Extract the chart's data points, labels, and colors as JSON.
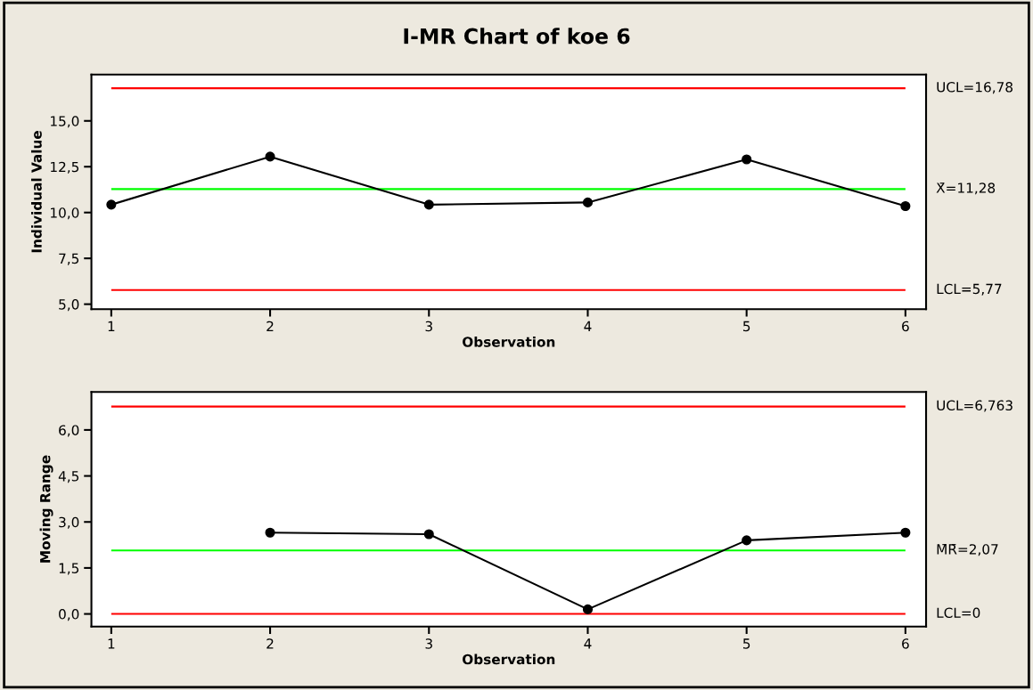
{
  "chart_data": [
    {
      "type": "line",
      "title": "I-MR Chart of koe 6",
      "xlabel": "Observation",
      "ylabel": "Individual Value",
      "x": [
        1,
        2,
        3,
        4,
        5,
        6
      ],
      "series": [
        {
          "color": "#000000",
          "values": [
            10.43,
            13.05,
            10.43,
            10.55,
            12.9,
            10.35
          ]
        }
      ],
      "marker": "circle",
      "line_style": "solid",
      "grid": false,
      "legend": false,
      "xlim": [
        0.875,
        6.13
      ],
      "xticks": [
        1,
        2,
        3,
        4,
        5,
        6
      ],
      "ylim": [
        4.73,
        17.53
      ],
      "yticks": [
        {
          "value": 5,
          "label": "5,0"
        },
        {
          "value": 7.5,
          "label": "7,5"
        },
        {
          "value": 10,
          "label": "10,0"
        },
        {
          "value": 12.5,
          "label": "12,5"
        },
        {
          "value": 15,
          "label": "15,0"
        }
      ],
      "ref_lines": [
        {
          "axis": "y",
          "value": 16.78,
          "label": "UCL=16,78",
          "color": "#ff0000"
        },
        {
          "axis": "y",
          "value": 11.28,
          "label": "X̄=11,28",
          "color": "#00ff00"
        },
        {
          "axis": "y",
          "value": 5.77,
          "label": "LCL=5,77",
          "color": "#ff0000"
        }
      ]
    },
    {
      "type": "line",
      "xlabel": "Observation",
      "ylabel": "Moving Range",
      "series": [
        {
          "color": "#000000",
          "x": [
            2,
            3,
            4,
            5,
            6
          ],
          "values": [
            2.65,
            2.6,
            0.15,
            2.4,
            2.65
          ]
        }
      ],
      "marker": "circle",
      "line_style": "solid",
      "grid": false,
      "legend": false,
      "xlim": [
        0.875,
        6.13
      ],
      "xticks": [
        1,
        2,
        3,
        4,
        5,
        6
      ],
      "ylim": [
        -0.41,
        7.24
      ],
      "yticks": [
        {
          "value": 0,
          "label": "0,0"
        },
        {
          "value": 1.5,
          "label": "1,5"
        },
        {
          "value": 3,
          "label": "3,0"
        },
        {
          "value": 4.5,
          "label": "4,5"
        },
        {
          "value": 6,
          "label": "6,0"
        }
      ],
      "ref_lines": [
        {
          "axis": "y",
          "value": 6.763,
          "label": "UCL=6,763",
          "color": "#ff0000"
        },
        {
          "axis": "y",
          "value": 2.07,
          "label": "M̄R̄=2,07",
          "color": "#00ff00"
        },
        {
          "axis": "y",
          "value": 0,
          "label": "LCL=0",
          "color": "#ff0000"
        }
      ]
    }
  ]
}
